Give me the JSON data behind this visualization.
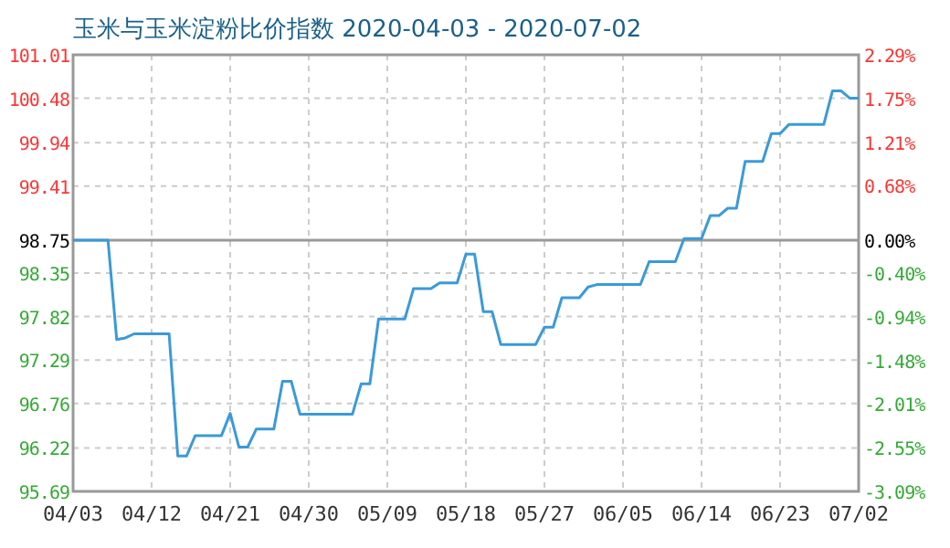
{
  "chart_data": {
    "type": "line",
    "title": "玉米与玉米淀粉比价指数 2020-04-03 - 2020-07-02",
    "x": [
      "2020-04-03",
      "2020-04-07",
      "2020-04-08",
      "2020-04-09",
      "2020-04-10",
      "2020-04-14",
      "2020-04-15",
      "2020-04-16",
      "2020-04-17",
      "2020-04-20",
      "2020-04-21",
      "2020-04-22",
      "2020-04-23",
      "2020-04-24",
      "2020-04-26",
      "2020-04-27",
      "2020-04-28",
      "2020-04-29",
      "2020-05-05",
      "2020-05-06",
      "2020-05-07",
      "2020-05-08",
      "2020-05-11",
      "2020-05-12",
      "2020-05-14",
      "2020-05-15",
      "2020-05-17",
      "2020-05-18",
      "2020-05-19",
      "2020-05-20",
      "2020-05-21",
      "2020-05-22",
      "2020-05-26",
      "2020-05-27",
      "2020-05-28",
      "2020-05-29",
      "2020-05-31",
      "2020-06-01",
      "2020-06-02",
      "2020-06-07",
      "2020-06-08",
      "2020-06-11",
      "2020-06-12",
      "2020-06-14",
      "2020-06-15",
      "2020-06-16",
      "2020-06-17",
      "2020-06-18",
      "2020-06-19",
      "2020-06-21",
      "2020-06-22",
      "2020-06-23",
      "2020-06-24",
      "2020-06-28",
      "2020-06-29",
      "2020-06-30",
      "2020-07-01",
      "2020-07-02"
    ],
    "series": [
      {
        "color": "#3a9ad9",
        "values": [
          98.75,
          98.75,
          97.54,
          97.56,
          97.61,
          97.61,
          96.12,
          96.12,
          96.37,
          96.37,
          96.64,
          96.23,
          96.23,
          96.45,
          96.45,
          97.03,
          97.03,
          96.63,
          96.63,
          97.0,
          97.0,
          97.79,
          97.79,
          98.16,
          98.16,
          98.23,
          98.23,
          98.58,
          98.58,
          97.88,
          97.88,
          97.48,
          97.48,
          97.69,
          97.69,
          98.05,
          98.05,
          98.18,
          98.21,
          98.21,
          98.49,
          98.49,
          98.77,
          98.77,
          99.05,
          99.05,
          99.14,
          99.14,
          99.71,
          99.71,
          100.05,
          100.05,
          100.16,
          100.16,
          100.57,
          100.57,
          100.48,
          100.48
        ]
      }
    ],
    "xlim": [
      "2020-04-03",
      "2020-07-02"
    ],
    "xticks": [
      {
        "value": "2020-04-03",
        "label": "04/03"
      },
      {
        "value": "2020-04-12",
        "label": "04/12"
      },
      {
        "value": "2020-04-21",
        "label": "04/21"
      },
      {
        "value": "2020-04-30",
        "label": "04/30"
      },
      {
        "value": "2020-05-09",
        "label": "05/09"
      },
      {
        "value": "2020-05-18",
        "label": "05/18"
      },
      {
        "value": "2020-05-27",
        "label": "05/27"
      },
      {
        "value": "2020-06-05",
        "label": "06/05"
      },
      {
        "value": "2020-06-14",
        "label": "06/14"
      },
      {
        "value": "2020-06-23",
        "label": "06/23"
      },
      {
        "value": "2020-07-02",
        "label": "07/02"
      }
    ],
    "ylim": [
      95.69,
      101.01
    ],
    "yticks": [
      101.01,
      100.48,
      99.94,
      99.41,
      98.75,
      98.35,
      97.82,
      97.29,
      96.76,
      96.22,
      95.69
    ],
    "y2lim": [
      -3.09,
      2.29
    ],
    "y2ticks": [
      {
        "value": 2.29,
        "label": "2.29%"
      },
      {
        "value": 1.75,
        "label": "1.75%"
      },
      {
        "value": 1.21,
        "label": "1.21%"
      },
      {
        "value": 0.68,
        "label": "0.68%"
      },
      {
        "value": 0,
        "label": "0.00%"
      },
      {
        "value": -0.4,
        "label": "-0.40%"
      },
      {
        "value": -0.94,
        "label": "-0.94%"
      },
      {
        "value": -1.48,
        "label": "-1.48%"
      },
      {
        "value": -2.01,
        "label": "-2.01%"
      },
      {
        "value": -2.55,
        "label": "-2.55%"
      },
      {
        "value": -3.09,
        "label": "-3.09%"
      }
    ],
    "ref_lines": [
      {
        "axis": "y",
        "value": 98.75,
        "color": "#999999",
        "line_style": "solid"
      }
    ],
    "grid": true,
    "marker": "none",
    "line_style": "solid"
  }
}
